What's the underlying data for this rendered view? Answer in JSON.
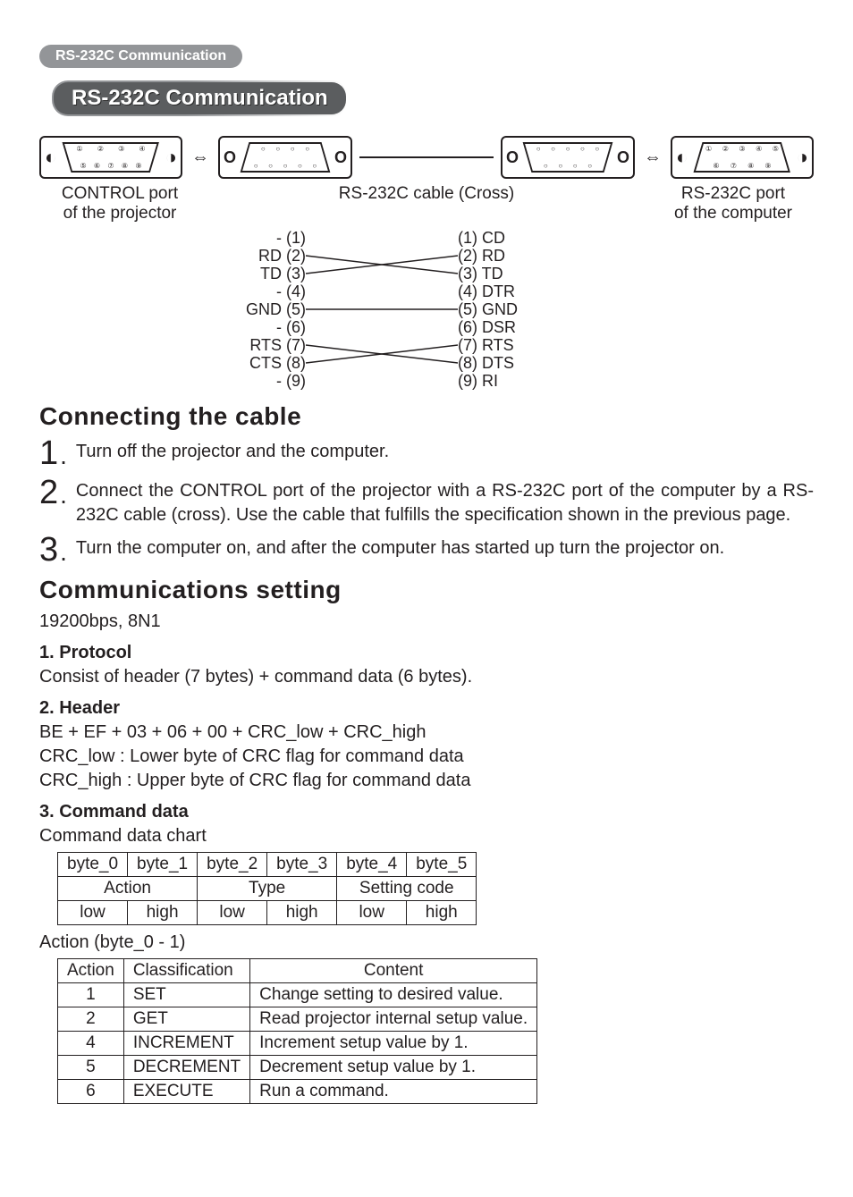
{
  "breadcrumb": "RS-232C Communication",
  "title": "RS-232C Communication",
  "connector_labels": {
    "projector_port_l1": "CONTROL port",
    "projector_port_l2": "of the projector",
    "cable_label": "RS-232C cable (Cross)",
    "computer_port_l1": "RS-232C port",
    "computer_port_l2": "of the computer"
  },
  "pin_map": {
    "left": [
      "- (1)",
      "RD (2)",
      "TD (3)",
      "- (4)",
      "GND (5)",
      "- (6)",
      "RTS (7)",
      "CTS (8)",
      "- (9)"
    ],
    "right": [
      "(1) CD",
      "(2) RD",
      "(3) TD",
      "(4) DTR",
      "(5) GND",
      "(6) DSR",
      "(7) RTS",
      "(8) DTS",
      "(9) RI"
    ],
    "cross_pairs": [
      [
        2,
        3
      ],
      [
        3,
        2
      ],
      [
        5,
        5
      ],
      [
        7,
        8
      ],
      [
        8,
        7
      ]
    ]
  },
  "h_connect": "Connecting the cable",
  "steps": [
    {
      "n": "1",
      "text": "Turn off the projector and the computer."
    },
    {
      "n": "2",
      "text": "Connect the CONTROL port of the projector with a RS-232C port of the computer by a RS-232C cable (cross). Use the cable that fulfills the specification shown in the previous page.",
      "justify": true
    },
    {
      "n": "3",
      "text": "Turn the computer on, and after the computer has started up turn the projector on."
    }
  ],
  "h_comm": "Communications setting",
  "baud_line": "19200bps, 8N1",
  "protocol_h": "1. Protocol",
  "protocol_body": "Consist of header (7 bytes) + command data (6 bytes).",
  "header_h": "2. Header",
  "header_body": "BE + EF + 03 + 06 + 00 + CRC_low + CRC_high\nCRC_low : Lower byte of CRC flag for command data\nCRC_high : Upper byte of CRC flag for command data",
  "cmd_h": "3. Command data",
  "cmd_caption": "Command data chart",
  "cmd_table": {
    "row1": [
      "byte_0",
      "byte_1",
      "byte_2",
      "byte_3",
      "byte_4",
      "byte_5"
    ],
    "row2": [
      "Action",
      "Type",
      "Setting code"
    ],
    "row3": [
      "low",
      "high",
      "low",
      "high",
      "low",
      "high"
    ]
  },
  "action_caption": "Action (byte_0 - 1)",
  "action_table": {
    "head": [
      "Action",
      "Classification",
      "Content"
    ],
    "rows": [
      [
        "1",
        "SET",
        "Change setting to desired value."
      ],
      [
        "2",
        "GET",
        "Read projector internal setup value."
      ],
      [
        "4",
        "INCREMENT",
        "Increment setup value by 1."
      ],
      [
        "5",
        "DECREMENT",
        "Decrement setup value by 1."
      ],
      [
        "6",
        "EXECUTE",
        "Run a command."
      ]
    ]
  },
  "colors": {
    "pill_bg": "#939598",
    "title_bg": "#5b5d5f",
    "text": "#231f20"
  }
}
